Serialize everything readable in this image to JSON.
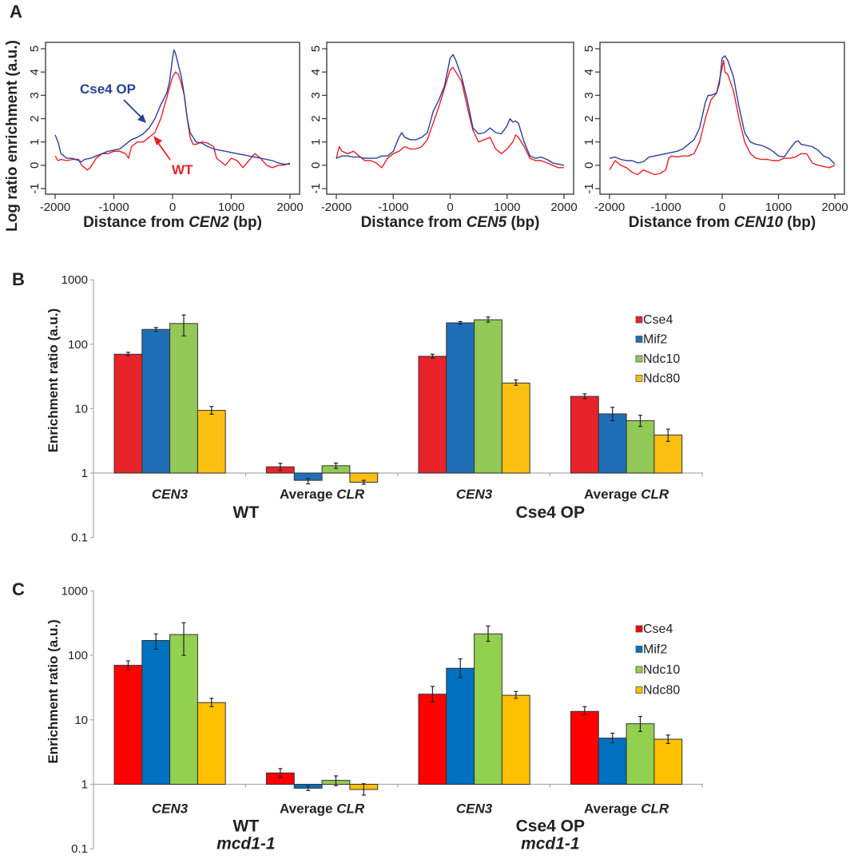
{
  "chart_data": [
    {
      "panel": "A",
      "type": "line",
      "title": "",
      "xlabel_prefix": "Distance from ",
      "xlabel_italic": "CEN2",
      "xlabel_suffix": " (bp)",
      "ylabel": "Log ratio  enrichment (a.u.)",
      "xlim": [
        -2000,
        2000
      ],
      "ylim": [
        -1.2,
        5.2
      ],
      "xticks": [
        -2000,
        -1000,
        0,
        1000,
        2000
      ],
      "yticks": [
        -1,
        0,
        1,
        2,
        3,
        4,
        5
      ],
      "annotations": [
        {
          "text": "Cse4 OP",
          "series": "Cse4 OP"
        },
        {
          "text": "WT",
          "series": "WT"
        }
      ],
      "series": [
        {
          "name": "Cse4 OP",
          "color": "#2b3f99",
          "x": [
            -2000,
            -1950,
            -1900,
            -1800,
            -1700,
            -1600,
            -1550,
            -1500,
            -1400,
            -1300,
            -1200,
            -1100,
            -1000,
            -900,
            -800,
            -700,
            -600,
            -500,
            -400,
            -300,
            -200,
            -100,
            -50,
            0,
            25,
            50,
            100,
            150,
            200,
            250,
            300,
            350,
            400,
            500,
            600,
            700,
            800,
            900,
            1000,
            1100,
            1200,
            1300,
            1400,
            1500,
            1600,
            1700,
            1800,
            1900,
            2000
          ],
          "y": [
            1.3,
            1.0,
            0.5,
            0.3,
            0.3,
            0.2,
            0.15,
            0.25,
            0.3,
            0.4,
            0.5,
            0.6,
            0.65,
            0.7,
            0.9,
            1.1,
            1.2,
            1.35,
            1.6,
            2.0,
            2.6,
            3.1,
            3.6,
            4.6,
            4.95,
            4.8,
            4.3,
            3.8,
            3.0,
            2.0,
            1.4,
            1.2,
            1.0,
            0.95,
            0.8,
            0.7,
            0.65,
            0.6,
            0.55,
            0.5,
            0.45,
            0.4,
            0.35,
            0.3,
            0.25,
            0.2,
            0.1,
            0.05,
            0.05
          ]
        },
        {
          "name": "WT",
          "color": "#e8202a",
          "x": [
            -2000,
            -1950,
            -1900,
            -1800,
            -1700,
            -1600,
            -1550,
            -1500,
            -1450,
            -1400,
            -1300,
            -1200,
            -1100,
            -1000,
            -900,
            -800,
            -750,
            -700,
            -600,
            -500,
            -400,
            -300,
            -200,
            -100,
            0,
            50,
            100,
            150,
            200,
            250,
            300,
            350,
            400,
            500,
            600,
            700,
            750,
            800,
            900,
            1000,
            1100,
            1200,
            1300,
            1400,
            1500,
            1600,
            1700,
            1800,
            1900,
            2000
          ],
          "y": [
            0.4,
            0.2,
            0.25,
            0.2,
            0.25,
            0.25,
            0.0,
            -0.1,
            -0.2,
            -0.1,
            0.3,
            0.5,
            0.5,
            0.6,
            0.6,
            0.5,
            0.3,
            0.8,
            1.0,
            1.0,
            1.2,
            1.4,
            2.0,
            2.9,
            3.8,
            4.0,
            3.9,
            3.5,
            3.0,
            2.0,
            1.2,
            0.9,
            0.9,
            1.0,
            0.95,
            0.8,
            0.3,
            0.2,
            0.0,
            0.3,
            0.2,
            -0.1,
            0.2,
            0.5,
            0.3,
            0.0,
            -0.1,
            0.0,
            0.0,
            0.1
          ]
        }
      ]
    },
    {
      "panel": "A",
      "type": "line",
      "xlabel_prefix": "Distance from ",
      "xlabel_italic": "CEN5",
      "xlabel_suffix": " (bp)",
      "ylabel": "",
      "xlim": [
        -2000,
        2000
      ],
      "ylim": [
        -1.2,
        5.2
      ],
      "xticks": [
        -2000,
        -1000,
        0,
        1000,
        2000
      ],
      "yticks": [
        -1,
        0,
        1,
        2,
        3,
        4,
        5
      ],
      "series": [
        {
          "name": "Cse4 OP",
          "color": "#2b3f99",
          "x": [
            -2000,
            -1900,
            -1800,
            -1700,
            -1600,
            -1500,
            -1400,
            -1300,
            -1200,
            -1100,
            -1000,
            -950,
            -900,
            -850,
            -800,
            -700,
            -600,
            -500,
            -400,
            -300,
            -200,
            -100,
            0,
            50,
            100,
            200,
            300,
            400,
            500,
            600,
            700,
            800,
            900,
            1000,
            1050,
            1100,
            1150,
            1200,
            1300,
            1400,
            1500,
            1600,
            1700,
            1800,
            1900,
            2000
          ],
          "y": [
            0.3,
            0.4,
            0.4,
            0.35,
            0.35,
            0.3,
            0.3,
            0.3,
            0.4,
            0.4,
            0.6,
            0.9,
            1.2,
            1.4,
            1.2,
            1.1,
            1.1,
            1.2,
            1.4,
            2.3,
            2.8,
            3.4,
            4.6,
            4.75,
            4.5,
            3.8,
            2.8,
            1.6,
            1.35,
            1.4,
            1.6,
            1.4,
            1.35,
            1.7,
            2.0,
            1.85,
            1.9,
            1.8,
            1.0,
            0.4,
            0.3,
            0.35,
            0.25,
            0.1,
            0.05,
            0.0
          ]
        },
        {
          "name": "WT",
          "color": "#e8202a",
          "x": [
            -2000,
            -1950,
            -1900,
            -1800,
            -1700,
            -1600,
            -1500,
            -1400,
            -1300,
            -1200,
            -1100,
            -1000,
            -900,
            -800,
            -700,
            -600,
            -500,
            -400,
            -300,
            -200,
            -100,
            0,
            50,
            100,
            200,
            300,
            400,
            500,
            600,
            700,
            800,
            900,
            1000,
            1100,
            1150,
            1200,
            1300,
            1400,
            1500,
            1600,
            1700,
            1800,
            1900,
            2000
          ],
          "y": [
            0.3,
            0.8,
            0.6,
            0.5,
            0.6,
            0.4,
            0.2,
            0.2,
            0.1,
            -0.1,
            0.3,
            0.5,
            0.6,
            0.8,
            0.7,
            0.7,
            0.8,
            1.1,
            1.8,
            2.5,
            3.3,
            4.1,
            4.2,
            4.0,
            3.6,
            2.5,
            1.5,
            1.0,
            1.1,
            1.2,
            0.7,
            0.5,
            0.7,
            1.0,
            1.3,
            1.2,
            0.8,
            0.3,
            0.2,
            0.2,
            0.1,
            0.0,
            -0.1,
            -0.1
          ]
        }
      ]
    },
    {
      "panel": "A",
      "type": "line",
      "xlabel_prefix": "Distance from ",
      "xlabel_italic": "CEN10",
      "xlabel_suffix": " (bp)",
      "ylabel": "",
      "xlim": [
        -2000,
        2000
      ],
      "ylim": [
        -1.2,
        5.2
      ],
      "xticks": [
        -2000,
        -1000,
        0,
        1000,
        2000
      ],
      "yticks": [
        -1,
        0,
        1,
        2,
        3,
        4,
        5
      ],
      "series": [
        {
          "name": "Cse4 OP",
          "color": "#2b3f99",
          "x": [
            -2000,
            -1900,
            -1800,
            -1700,
            -1600,
            -1500,
            -1400,
            -1300,
            -1200,
            -1100,
            -1000,
            -900,
            -800,
            -700,
            -600,
            -500,
            -400,
            -300,
            -250,
            -200,
            -100,
            -50,
            0,
            50,
            100,
            200,
            300,
            400,
            500,
            600,
            700,
            800,
            900,
            1000,
            1100,
            1200,
            1300,
            1350,
            1400,
            1500,
            1600,
            1700,
            1800,
            1900,
            2000
          ],
          "y": [
            0.3,
            0.35,
            0.25,
            0.2,
            0.2,
            0.1,
            0.15,
            0.35,
            0.4,
            0.45,
            0.5,
            0.55,
            0.6,
            0.7,
            0.9,
            1.1,
            1.6,
            2.7,
            3.0,
            3.0,
            3.1,
            3.5,
            4.6,
            4.7,
            4.5,
            3.8,
            2.5,
            1.4,
            1.0,
            0.9,
            0.85,
            0.75,
            0.6,
            0.4,
            0.35,
            0.7,
            1.0,
            1.05,
            0.9,
            0.85,
            0.8,
            0.65,
            0.4,
            0.3,
            0.05
          ]
        },
        {
          "name": "WT",
          "color": "#e8202a",
          "x": [
            -2000,
            -1950,
            -1900,
            -1800,
            -1700,
            -1600,
            -1500,
            -1400,
            -1300,
            -1200,
            -1100,
            -1000,
            -950,
            -900,
            -800,
            -700,
            -600,
            -500,
            -400,
            -300,
            -200,
            -100,
            0,
            25,
            50,
            100,
            200,
            300,
            400,
            500,
            600,
            700,
            800,
            900,
            1000,
            1100,
            1200,
            1300,
            1400,
            1500,
            1600,
            1700,
            1800,
            1900,
            2000
          ],
          "y": [
            -0.2,
            0.0,
            0.2,
            0.0,
            -0.1,
            -0.3,
            -0.4,
            -0.2,
            -0.3,
            -0.4,
            -0.35,
            -0.2,
            0.3,
            0.4,
            0.35,
            0.4,
            0.4,
            0.5,
            1.0,
            2.0,
            2.8,
            3.1,
            4.2,
            4.5,
            4.0,
            3.9,
            3.2,
            2.0,
            1.0,
            0.5,
            0.3,
            0.25,
            0.25,
            0.2,
            0.2,
            0.3,
            0.3,
            0.35,
            0.5,
            0.5,
            0.1,
            0.0,
            -0.05,
            -0.1,
            0.0
          ]
        }
      ]
    },
    {
      "panel": "B",
      "type": "bar",
      "scale": "log",
      "ylabel": "Enrichment ratio (a.u.)",
      "ylim": [
        0.1,
        1000
      ],
      "yticks": [
        0.1,
        1,
        10,
        100,
        1000
      ],
      "ytick_labels": [
        "0.1",
        "1",
        "10",
        "100",
        "1000"
      ],
      "baseline": 1,
      "categories": [
        {
          "label": "CEN3",
          "italic_part": "CEN3",
          "plain_part": ""
        },
        {
          "label": "Average CLR",
          "plain_part": "Average ",
          "italic_part": "CLR"
        },
        {
          "label": "CEN3",
          "italic_part": "CEN3",
          "plain_part": ""
        },
        {
          "label": "Average CLR",
          "plain_part": "Average ",
          "italic_part": "CLR"
        }
      ],
      "groups": [
        {
          "label": "WT",
          "sublabel": ""
        },
        {
          "label": "Cse4 OP",
          "sublabel": ""
        }
      ],
      "legend": {
        "position": "top-right"
      },
      "series": [
        {
          "name": "Cse4",
          "color": "#e8232a",
          "values": [
            70,
            1.25,
            65,
            15.5
          ],
          "err": [
            [
              66,
              75
            ],
            [
              1.1,
              1.42
            ],
            [
              61,
              70
            ],
            [
              14.3,
              17
            ]
          ]
        },
        {
          "name": "Mif2",
          "color": "#1f6fb6",
          "values": [
            170,
            0.77,
            215,
            8.3
          ],
          "err": [
            [
              158,
              182
            ],
            [
              0.68,
              0.83
            ],
            [
              205,
              225
            ],
            [
              6.5,
              10.5
            ]
          ]
        },
        {
          "name": "Ndc10",
          "color": "#92c957",
          "values": [
            210,
            1.3,
            240,
            6.5
          ],
          "err": [
            [
              135,
              285
            ],
            [
              1.18,
              1.43
            ],
            [
              220,
              265
            ],
            [
              5.3,
              7.9
            ]
          ]
        },
        {
          "name": "Ndc80",
          "color": "#fbbf11",
          "values": [
            9.4,
            0.72,
            25,
            3.9
          ],
          "err": [
            [
              8.2,
              10.8
            ],
            [
              0.67,
              0.77
            ],
            [
              23,
              28
            ],
            [
              3.1,
              4.8
            ]
          ]
        }
      ]
    },
    {
      "panel": "C",
      "type": "bar",
      "scale": "log",
      "ylabel": "Enrichment ratio (a.u.)",
      "ylim": [
        0.1,
        1000
      ],
      "yticks": [
        0.1,
        1,
        10,
        100,
        1000
      ],
      "ytick_labels": [
        "0.1",
        "1",
        "10",
        "100",
        "1000"
      ],
      "baseline": 1,
      "categories": [
        {
          "label": "CEN3",
          "italic_part": "CEN3",
          "plain_part": ""
        },
        {
          "label": "Average CLR",
          "plain_part": "Average ",
          "italic_part": "CLR"
        },
        {
          "label": "CEN3",
          "italic_part": "CEN3",
          "plain_part": ""
        },
        {
          "label": "Average CLR",
          "plain_part": "Average ",
          "italic_part": "CLR"
        }
      ],
      "groups": [
        {
          "label": "WT",
          "sublabel": "mcd1-1"
        },
        {
          "label": "Cse4 OP",
          "sublabel": "mcd1-1"
        }
      ],
      "legend": {
        "position": "top-right"
      },
      "series": [
        {
          "name": "Cse4",
          "color": "#ff0000",
          "values": [
            70,
            1.5,
            25,
            13.5
          ],
          "err": [
            [
              60,
              82
            ],
            [
              1.28,
              1.75
            ],
            [
              19,
              33
            ],
            [
              12,
              16
            ]
          ]
        },
        {
          "name": "Mif2",
          "color": "#0070c0",
          "values": [
            170,
            0.87,
            63,
            5.2
          ],
          "err": [
            [
              125,
              215
            ],
            [
              0.8,
              0.94
            ],
            [
              45,
              88
            ],
            [
              4.4,
              6.2
            ]
          ]
        },
        {
          "name": "Ndc10",
          "color": "#92d050",
          "values": [
            210,
            1.15,
            215,
            8.7
          ],
          "err": [
            [
              100,
              320
            ],
            [
              0.95,
              1.35
            ],
            [
              165,
              285
            ],
            [
              6.6,
              11.3
            ]
          ]
        },
        {
          "name": "Ndc80",
          "color": "#ffc000",
          "values": [
            18.5,
            0.83,
            24,
            5.0
          ],
          "err": [
            [
              16,
              21.5
            ],
            [
              0.68,
              1.02
            ],
            [
              21.5,
              27.5
            ],
            [
              4.3,
              5.8
            ]
          ]
        }
      ]
    }
  ],
  "panels": {
    "a_letter": "A",
    "b_letter": "B",
    "c_letter": "C"
  }
}
